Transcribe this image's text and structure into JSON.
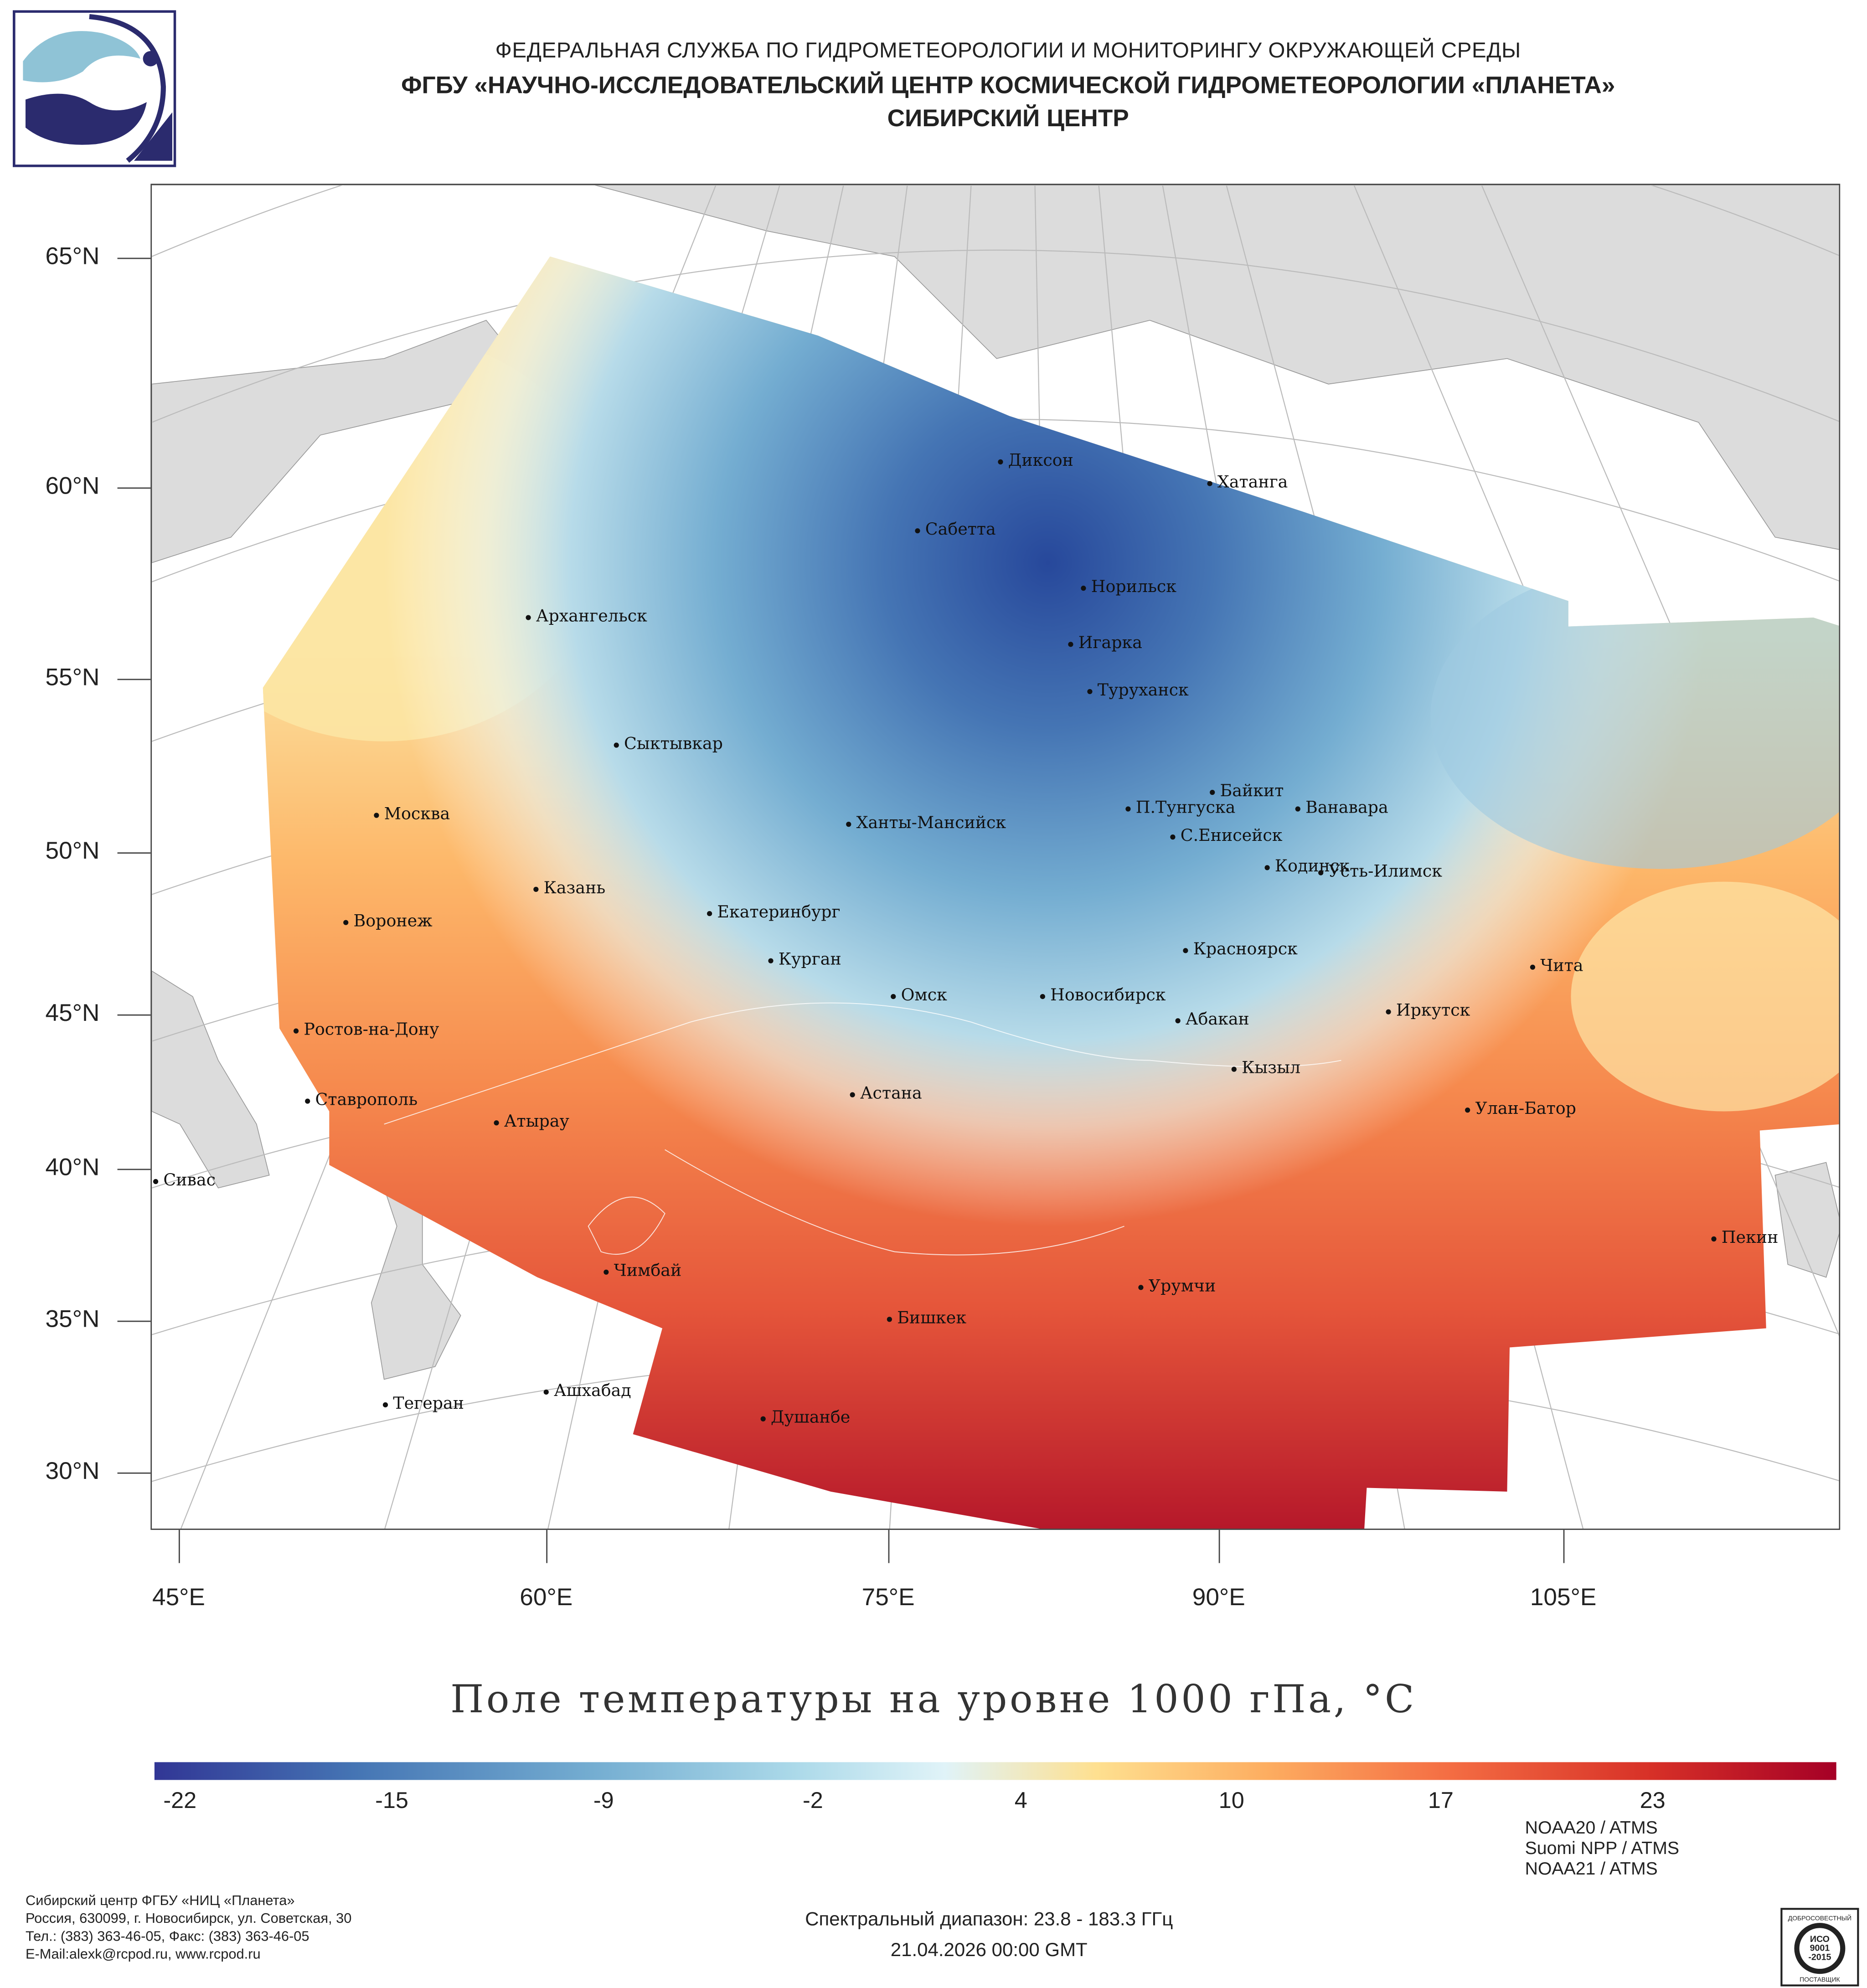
{
  "header": {
    "line1": "ФЕДЕРАЛЬНАЯ СЛУЖБА ПО ГИДРОМЕТЕОРОЛОГИИ И МОНИТОРИНГУ ОКРУЖАЮЩЕЙ СРЕДЫ",
    "line2": "ФГБУ «НАУЧНО-ИССЛЕДОВАТЕЛЬСКИЙ ЦЕНТР КОСМИЧЕСКОЙ ГИДРОМЕТЕОРОЛОГИИ «ПЛАНЕТА»",
    "line3": "СИБИРСКИЙ ЦЕНТР"
  },
  "map": {
    "lat_labels": [
      "65°N",
      "60°N",
      "55°N",
      "50°N",
      "45°N",
      "40°N",
      "35°N",
      "30°N"
    ],
    "lon_labels": [
      "45°E",
      "60°E",
      "75°E",
      "90°E",
      "105°E"
    ],
    "cities": [
      {
        "name": "Диксон"
      },
      {
        "name": "Хатанга"
      },
      {
        "name": "Сабетта"
      },
      {
        "name": "Норильск"
      },
      {
        "name": "Архангельск"
      },
      {
        "name": "Игарка"
      },
      {
        "name": "Туруханск"
      },
      {
        "name": "Сыктывкар"
      },
      {
        "name": "Байкит"
      },
      {
        "name": "Москва"
      },
      {
        "name": "Ханты-Мансийск"
      },
      {
        "name": "П.Тунгуска"
      },
      {
        "name": "Ванавара"
      },
      {
        "name": "С.Енисейск"
      },
      {
        "name": "Кодинск"
      },
      {
        "name": "Усть-Илимск"
      },
      {
        "name": "Казань"
      },
      {
        "name": "Екатеринбург"
      },
      {
        "name": "Воронеж"
      },
      {
        "name": "Красноярск"
      },
      {
        "name": "Курган"
      },
      {
        "name": "Чита"
      },
      {
        "name": "Омск"
      },
      {
        "name": "Новосибирск"
      },
      {
        "name": "Иркутск"
      },
      {
        "name": "Ростов-на-Дону"
      },
      {
        "name": "Абакан"
      },
      {
        "name": "Кызыл"
      },
      {
        "name": "Астана"
      },
      {
        "name": "Ставрополь"
      },
      {
        "name": "Улан-Батор"
      },
      {
        "name": "Атырау"
      },
      {
        "name": "Сивас"
      },
      {
        "name": "Пекин"
      },
      {
        "name": "Чимбай"
      },
      {
        "name": "Урумчи"
      },
      {
        "name": "Бишкек"
      },
      {
        "name": "Ашхабад"
      },
      {
        "name": "Тегеран"
      },
      {
        "name": "Душанбе"
      }
    ]
  },
  "title": "Поле температуры на уровне 1000 гПа, °С",
  "colorbar": {
    "labels": [
      "-22",
      "-15",
      "-9",
      "-2",
      "4",
      "10",
      "17",
      "23"
    ],
    "min": -25,
    "max": 27,
    "colors": [
      "#313695",
      "#4575b4",
      "#74add1",
      "#abd9e9",
      "#e0f3f8",
      "#fee090",
      "#fdae61",
      "#f46d43",
      "#d73027",
      "#a50026"
    ]
  },
  "footer": {
    "org": "Сибирский центр ФГБУ «НИЦ «Планета»",
    "address": "Россия, 630099, г. Новосибирск, ул. Советская, 30",
    "phones": "Тел.: (383) 363-46-05, Факс: (383) 363-46-05",
    "email": "E-Mail:alexk@rcpod.ru, www.rcpod.ru",
    "spectral": "Спектральный диапазон: 23.8 - 183.3 ГГц",
    "datetime": "21.04.2026 00:00 GMT",
    "sensors": [
      "NOAA20 / ATMS",
      "Suomi NPP / ATMS",
      "NOAA21 / ATMS"
    ]
  },
  "iso_badge": {
    "top": "ДОБРОСОВЕСТНЫЙ",
    "main1": "ИСО",
    "main2": "9001",
    "main3": "-2015",
    "bottom": "ПОСТАВЩИК"
  }
}
